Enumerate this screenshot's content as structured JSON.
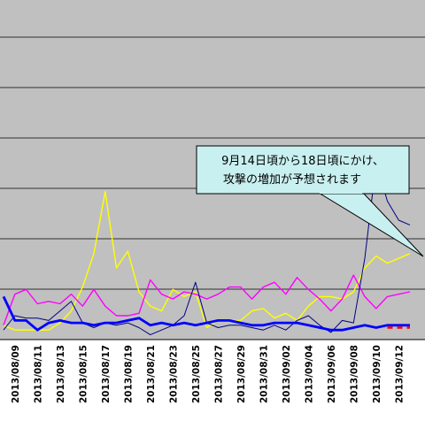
{
  "chart_data": {
    "type": "line",
    "title": "",
    "xlabel": "",
    "ylabel": "",
    "grid": true,
    "x": [
      "2013/08/08",
      "2013/08/09",
      "2013/08/10",
      "2013/08/11",
      "2013/08/12",
      "2013/08/13",
      "2013/08/14",
      "2013/08/15",
      "2013/08/16",
      "2013/08/17",
      "2013/08/18",
      "2013/08/19",
      "2013/08/20",
      "2013/08/21",
      "2013/08/22",
      "2013/08/23",
      "2013/08/24",
      "2013/08/25",
      "2013/08/26",
      "2013/08/27",
      "2013/08/28",
      "2013/08/29",
      "2013/08/30",
      "2013/08/31",
      "2013/09/01",
      "2013/09/02",
      "2013/09/03",
      "2013/09/04",
      "2013/09/05",
      "2013/09/06",
      "2013/09/07",
      "2013/09/08",
      "2013/09/09",
      "2013/09/10",
      "2013/09/11",
      "2013/09/12",
      "2013/09/13"
    ],
    "tick_labels": [
      "2013/08/09",
      "2013/08/11",
      "2013/08/13",
      "2013/08/15",
      "2013/08/17",
      "2013/08/19",
      "2013/08/21",
      "2013/08/23",
      "2013/08/25",
      "2013/08/27",
      "2013/08/29",
      "2013/08/31",
      "2013/09/02",
      "2013/09/04",
      "2013/09/06",
      "2013/09/08",
      "2013/09/10",
      "2013/09/12"
    ],
    "ylim": [
      0,
      7
    ],
    "series": [
      {
        "color": "#ffff00",
        "width": 1.4,
        "values": [
          0.3,
          0.2,
          0.2,
          0.2,
          0.2,
          0.35,
          0.6,
          1.1,
          1.8,
          3.1,
          1.5,
          1.85,
          1.0,
          0.7,
          0.6,
          1.05,
          0.9,
          1.0,
          0.25,
          0.4,
          0.4,
          0.4,
          0.6,
          0.65,
          0.45,
          0.55,
          0.4,
          0.7,
          0.9,
          0.9,
          0.85,
          1.0,
          1.5,
          1.75,
          1.6,
          1.7,
          1.8
        ]
      },
      {
        "color": "#ff00ff",
        "width": 1.4,
        "values": [
          0.3,
          0.95,
          1.05,
          0.75,
          0.8,
          0.75,
          0.95,
          0.7,
          1.05,
          0.7,
          0.5,
          0.5,
          0.55,
          1.25,
          0.95,
          0.85,
          1.0,
          0.95,
          0.85,
          0.95,
          1.1,
          1.1,
          0.85,
          1.1,
          1.2,
          0.95,
          1.3,
          1.05,
          0.85,
          0.6,
          0.85,
          1.35,
          0.9,
          0.65,
          0.9,
          0.95,
          1.0
        ]
      },
      {
        "color": "#000080",
        "width": 1.0,
        "values": [
          0.2,
          0.5,
          0.45,
          0.45,
          0.4,
          0.6,
          0.8,
          0.35,
          0.25,
          0.35,
          0.3,
          0.35,
          0.25,
          0.1,
          0.2,
          0.3,
          0.5,
          1.2,
          0.35,
          0.25,
          0.3,
          0.3,
          0.25,
          0.2,
          0.3,
          0.2,
          0.4,
          0.5,
          0.3,
          0.15,
          0.4,
          0.35,
          1.7,
          3.7,
          2.9,
          2.5,
          2.4
        ]
      },
      {
        "color": "#0000ff",
        "width": 2.8,
        "values": [
          0.9,
          0.4,
          0.4,
          0.2,
          0.35,
          0.4,
          0.35,
          0.35,
          0.3,
          0.35,
          0.35,
          0.4,
          0.45,
          0.3,
          0.35,
          0.3,
          0.35,
          0.3,
          0.35,
          0.4,
          0.4,
          0.35,
          0.3,
          0.3,
          0.35,
          0.35,
          0.35,
          0.3,
          0.25,
          0.2,
          0.2,
          0.25,
          0.3,
          0.25,
          0.3,
          0.3,
          0.3
        ]
      },
      {
        "color": "#ff0000",
        "width": 2.6,
        "dashed": true,
        "values": [
          null,
          null,
          null,
          null,
          null,
          null,
          null,
          null,
          null,
          null,
          null,
          null,
          null,
          null,
          null,
          null,
          null,
          null,
          null,
          null,
          null,
          null,
          null,
          null,
          null,
          null,
          null,
          null,
          null,
          null,
          null,
          null,
          null,
          null,
          0.25,
          0.25,
          0.25
        ]
      }
    ],
    "annotation": {
      "text_line1": "9月14日頃から18日頃にかけ、",
      "text_line2": "攻撃の増加が予想されます",
      "fill": "#c9f0f0",
      "border": "#000000"
    },
    "colors": {
      "plot_background": "#c0c0c0",
      "gridline": "#000000"
    }
  }
}
